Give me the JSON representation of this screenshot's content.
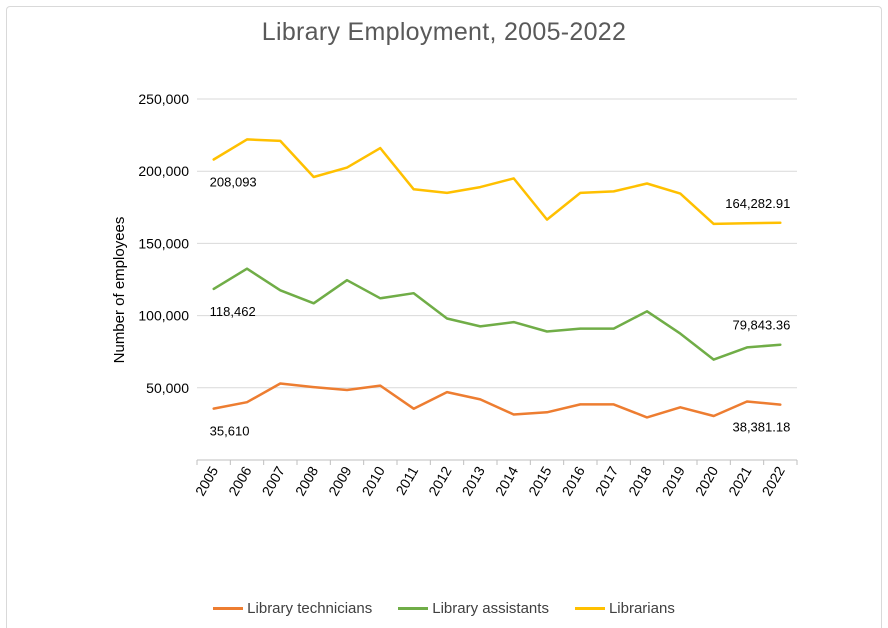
{
  "chart_data": {
    "type": "line",
    "title": "Library Employment, 2005-2022",
    "ylabel": "Number of employees",
    "xlabel": "",
    "ylim": [
      0,
      250000
    ],
    "yticks": [
      50000,
      100000,
      150000,
      200000,
      250000
    ],
    "ytick_labels": [
      "50,000",
      "100,000",
      "150,000",
      "200,000",
      "250,000"
    ],
    "grid": true,
    "legend_position": "bottom",
    "categories": [
      "2005",
      "2006",
      "2007",
      "2008",
      "2009",
      "2010",
      "2011",
      "2012",
      "2013",
      "2014",
      "2015",
      "2016",
      "2017",
      "2018",
      "2019",
      "2020",
      "2021",
      "2022"
    ],
    "series": [
      {
        "name": "Library technicians",
        "color": "#ed7d31",
        "values": [
          35610,
          40000,
          53000,
          50500,
          48500,
          51500,
          35500,
          47000,
          42000,
          31500,
          33000,
          38500,
          38500,
          29500,
          36500,
          30500,
          40500,
          38381.18
        ]
      },
      {
        "name": "Library assistants",
        "color": "#70ad47",
        "values": [
          118462,
          132500,
          117500,
          108500,
          124500,
          112000,
          115500,
          98000,
          92500,
          95500,
          89000,
          91000,
          91000,
          103000,
          87500,
          69500,
          78000,
          79843.36
        ]
      },
      {
        "name": "Librarians",
        "color": "#ffc000",
        "values": [
          208093,
          222000,
          221000,
          196000,
          202500,
          216000,
          187500,
          185000,
          189000,
          195000,
          166500,
          185000,
          186000,
          191500,
          184500,
          163500,
          164000,
          164282.91
        ]
      }
    ],
    "data_labels": [
      {
        "series": 2,
        "index": 0,
        "text": "208,093"
      },
      {
        "series": 2,
        "index": 17,
        "text": "164,282.91"
      },
      {
        "series": 1,
        "index": 0,
        "text": "118,462"
      },
      {
        "series": 1,
        "index": 17,
        "text": "79,843.36"
      },
      {
        "series": 0,
        "index": 0,
        "text": "35,610"
      },
      {
        "series": 0,
        "index": 17,
        "text": "38,381.18"
      }
    ]
  }
}
